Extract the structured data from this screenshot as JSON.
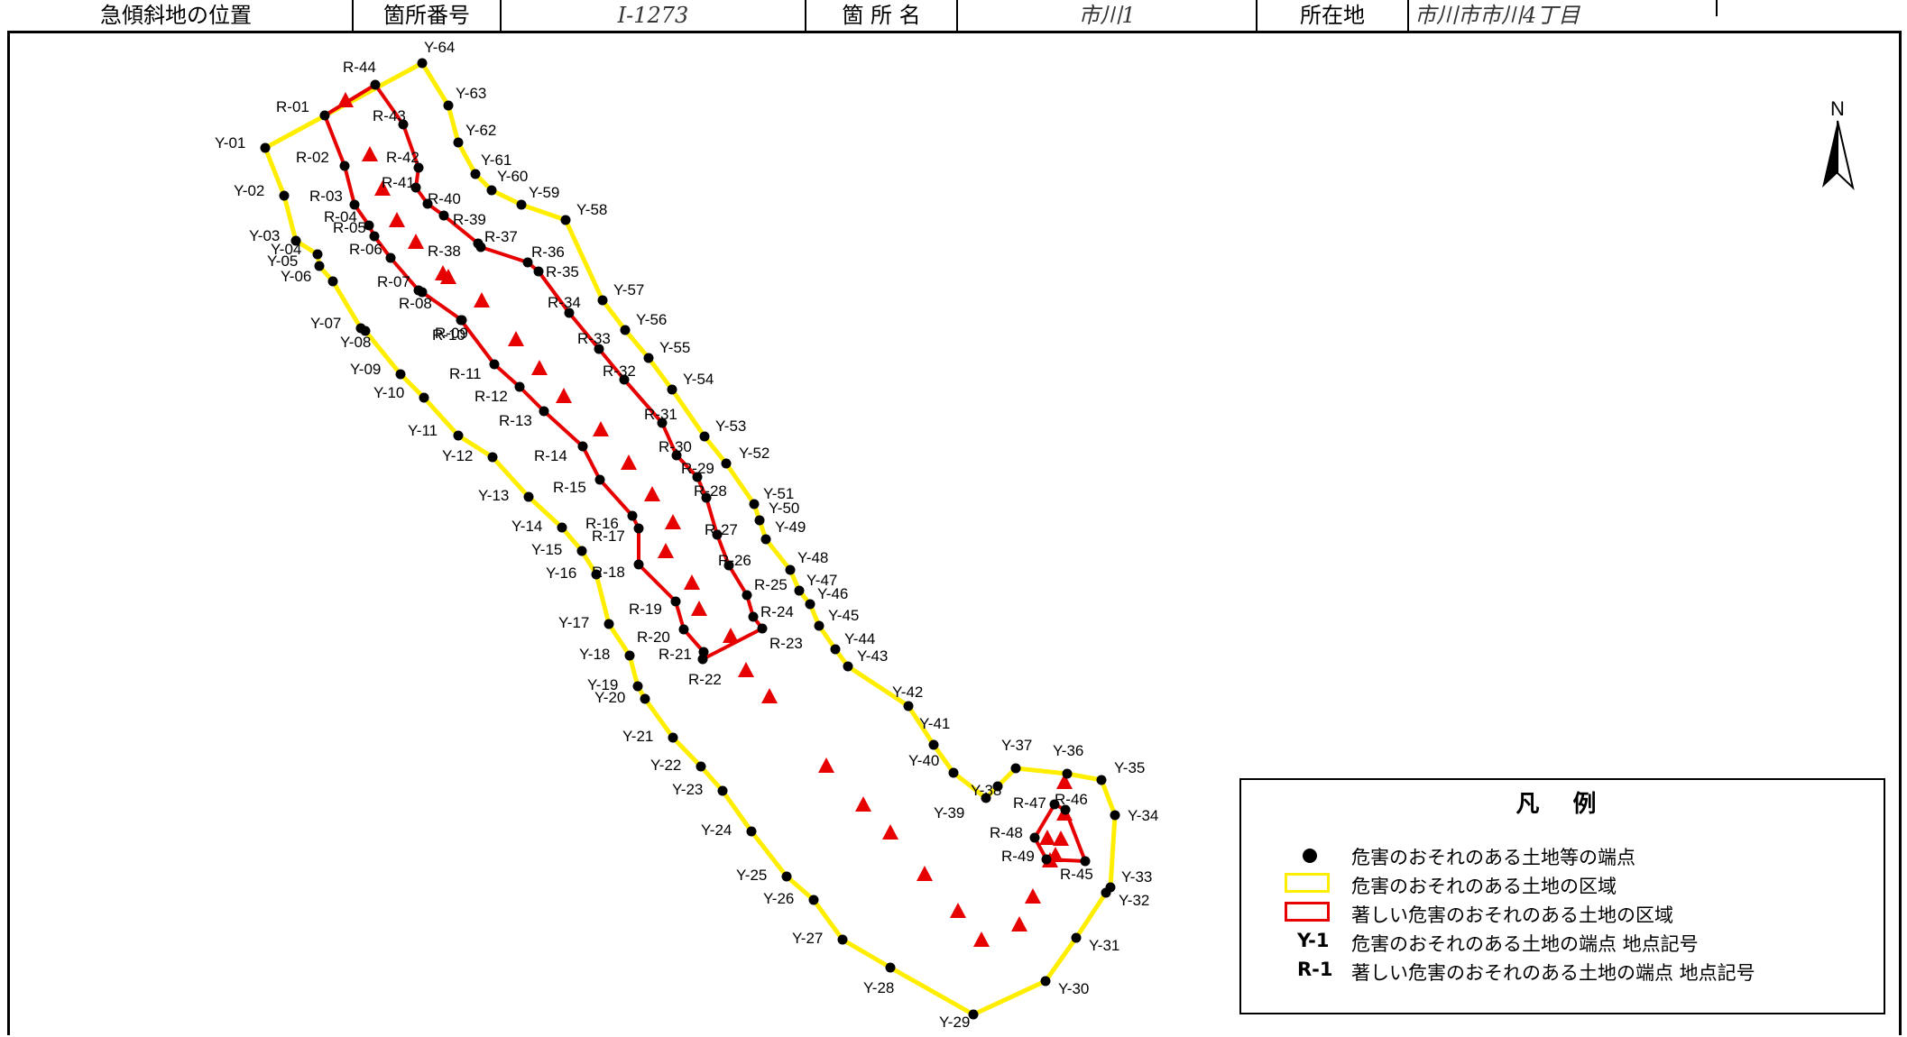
{
  "header": {
    "cells": [
      {
        "label": "急傾斜地の位置"
      },
      {
        "label": "箇所番号"
      },
      {
        "value": "Ⅰ-1273"
      },
      {
        "label": "箇 所 名"
      },
      {
        "value": "市川1"
      },
      {
        "label": "所在地"
      },
      {
        "value": "市川市市川4丁目"
      }
    ]
  },
  "map": {
    "north_label": "N",
    "yellow_zone_labels": [
      "Y-01",
      "Y-02",
      "Y-03",
      "Y-04",
      "Y-05",
      "Y-06",
      "Y-07",
      "Y-08",
      "Y-09",
      "Y-10",
      "Y-11",
      "Y-12",
      "Y-13",
      "Y-14",
      "Y-15",
      "Y-16",
      "Y-17",
      "Y-18",
      "Y-19",
      "Y-20",
      "Y-21",
      "Y-22",
      "Y-23",
      "Y-24",
      "Y-25",
      "Y-26",
      "Y-27",
      "Y-28",
      "Y-29",
      "Y-30",
      "Y-31",
      "Y-32",
      "Y-33",
      "Y-34",
      "Y-35",
      "Y-36",
      "Y-37",
      "Y-38",
      "Y-39",
      "Y-40",
      "Y-41",
      "Y-42",
      "Y-43",
      "Y-44",
      "Y-45",
      "Y-46",
      "Y-47",
      "Y-48",
      "Y-49",
      "Y-50",
      "Y-51",
      "Y-52",
      "Y-53",
      "Y-54",
      "Y-55",
      "Y-56",
      "Y-57",
      "Y-58",
      "Y-59",
      "Y-60",
      "Y-61",
      "Y-62",
      "Y-63",
      "Y-64"
    ],
    "red_zone_labels": [
      "R-01",
      "R-02",
      "R-03",
      "R-04",
      "R-05",
      "R-06",
      "R-07",
      "R-08",
      "R-09",
      "R-10",
      "R-11",
      "R-12",
      "R-13",
      "R-14",
      "R-15",
      "R-16",
      "R-17",
      "R-18",
      "R-19",
      "R-20",
      "R-21",
      "R-22",
      "R-23",
      "R-24",
      "R-25",
      "R-26",
      "R-27",
      "R-28",
      "R-29",
      "R-30",
      "R-31",
      "R-32",
      "R-33",
      "R-34",
      "R-35",
      "R-36",
      "R-37",
      "R-38",
      "R-39",
      "R-40",
      "R-41",
      "R-42",
      "R-43",
      "R-44"
    ],
    "red_zone_small_labels": [
      "R-45",
      "R-46",
      "R-47",
      "R-48",
      "R-49"
    ],
    "colors": {
      "yellow_zone": "#ffee00",
      "red_zone": "#e60000",
      "points": "#000000",
      "slope_marks": "#e60000"
    }
  },
  "legend": {
    "title": "凡 例",
    "items": [
      {
        "symbol": "black-dot",
        "text": "危害のおそれのある土地等の端点"
      },
      {
        "symbol": "yellow-box",
        "text": "危害のおそれのある土地の区域"
      },
      {
        "symbol": "red-box",
        "text": "著しい危害のおそれのある土地の区域"
      },
      {
        "symbol_text": "Y-1",
        "text": "危害のおそれのある土地の端点 地点記号"
      },
      {
        "symbol_text": "R-1",
        "text": "著しい危害のおそれのある土地の端点 地点記号"
      }
    ]
  }
}
